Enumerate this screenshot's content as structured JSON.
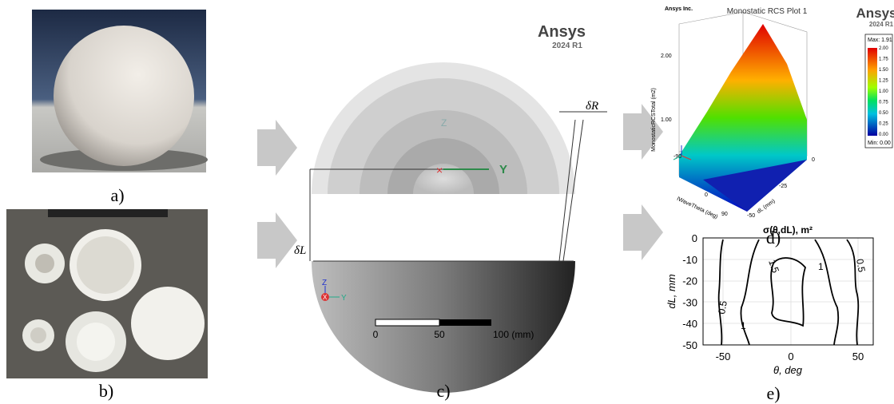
{
  "panels": {
    "a": {
      "label": "a)"
    },
    "b": {
      "label": "b)"
    },
    "c": {
      "label": "c)",
      "brand": "Ansys",
      "version": "2024 R1",
      "delta_l": "δL",
      "delta_r": "δR",
      "axis_y": "Y",
      "axis_z": "Z",
      "triad": {
        "z": "Z",
        "x": "X",
        "y": "Y"
      },
      "scale_ticks": [
        "0",
        "50",
        "100 (mm)"
      ]
    },
    "d": {
      "label": "d)",
      "company": "Ansys Inc.",
      "title": "Monostatic RCS Plot 1",
      "brand": "Ansys",
      "version": "2024 R1",
      "legend_max": "Max: 1.91",
      "legend_min": "Min: 0.00",
      "legend_ticks": [
        "2.00",
        "1.75",
        "1.50",
        "1.25",
        "1.00",
        "0.75",
        "0.50",
        "0.25",
        "0.00"
      ],
      "z_axis_label": "MonostaticRCSTotal (m2)",
      "z_ticks": [
        "2.00",
        "1.00"
      ],
      "theta_label": "IWaveTheta (deg)",
      "theta_ticks": [
        "-90",
        "0",
        "90"
      ],
      "dl_label": "dL (mm)",
      "dl_ticks": [
        "0",
        "-25",
        "-50"
      ]
    },
    "e": {
      "label": "e)",
      "title": "σ(θ,dL), m²",
      "x_label": "θ, deg",
      "y_label": "dL, mm",
      "x_ticks": [
        "-50",
        "0",
        "50"
      ],
      "y_ticks": [
        "0",
        "-10",
        "-20",
        "-30",
        "-40",
        "-50"
      ],
      "contour_labels": [
        "0.5",
        "1",
        "1.5",
        "0.5",
        "1"
      ]
    }
  }
}
